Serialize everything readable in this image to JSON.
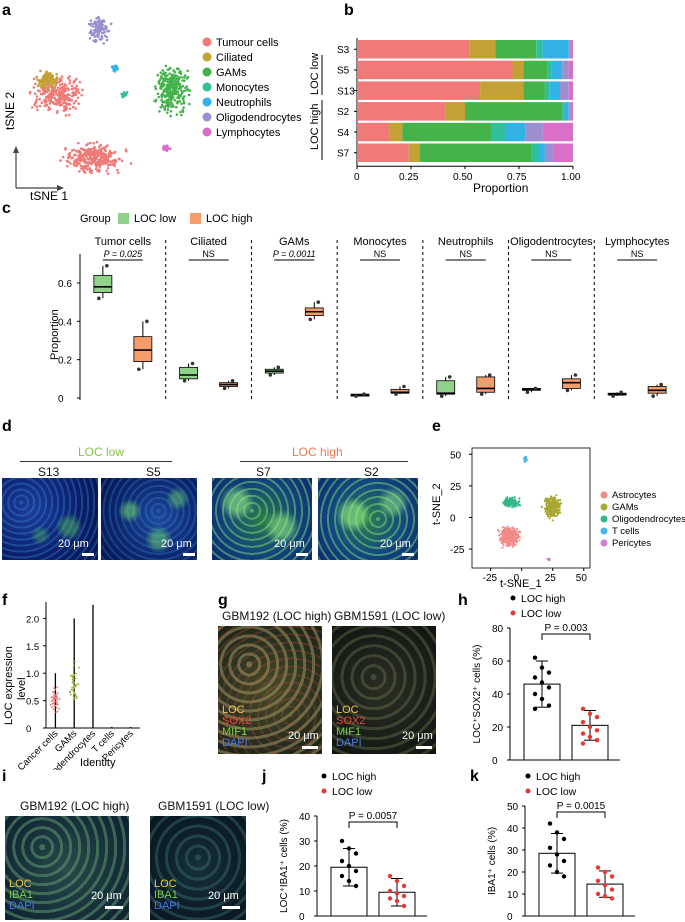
{
  "panel_labels": {
    "a": "a",
    "b": "b",
    "c": "c",
    "d": "d",
    "e": "e",
    "f": "f",
    "g": "g",
    "h": "h",
    "i": "i",
    "j": "j",
    "k": "k"
  },
  "colors": {
    "tumour": "#f07a78",
    "ciliated": "#c4a135",
    "gams": "#45b24a",
    "monocytes": "#2fbf9b",
    "neutrophils": "#31b3e6",
    "oligodendrocytes": "#9b8fd0",
    "lymphocytes": "#d96fc6",
    "loc_low": "#92d18b",
    "loc_high": "#f49c6a",
    "loc_low_label": "#8bc34a",
    "loc_high_label": "#f07a4a",
    "astro": "#f28a8a",
    "gams_e": "#a8a832",
    "oligo_e": "#33b886",
    "tcells_e": "#4ab4e8",
    "peri_e": "#d080d0"
  },
  "panel_a": {
    "xlabel": "tSNE 1",
    "ylabel": "tSNE 2",
    "legend": [
      "Tumour cells",
      "Ciliated",
      "GAMs",
      "Monocytes",
      "Neutrophils",
      "Oligodendrocytes",
      "Lymphocytes"
    ]
  },
  "panel_b": {
    "xlabel": "Proportion",
    "group_low": "LOC low",
    "group_high": "LOC high",
    "xticks": [
      "0",
      "0.25",
      "0.50",
      "0.75",
      "1.00"
    ]
  },
  "panel_c": {
    "group_title": "Group",
    "legend_low": "LOC low",
    "legend_high": "LOC high",
    "ylabel": "Proportion",
    "yticks": [
      "0",
      "0.2",
      "0.4",
      "0.6"
    ],
    "p_labels": [
      "P = 0.025",
      "NS",
      "P = 0.0011",
      "NS",
      "NS",
      "NS",
      "NS"
    ]
  },
  "panel_d": {
    "group_low": "LOC low",
    "group_high": "LOC high",
    "samples": [
      "S13",
      "S5",
      "S7",
      "S2"
    ],
    "scale": "20 μm"
  },
  "panel_e": {
    "xlabel": "t-SNE_1",
    "ylabel": "t-SNE_2",
    "xticks": [
      "-25",
      "0",
      "25",
      "50"
    ],
    "yticks": [
      "-25",
      "0",
      "25",
      "50"
    ],
    "legend": [
      "Astrocytes",
      "GAMs",
      "Oligodendrocytes",
      "T cells",
      "Pericytes"
    ]
  },
  "panel_f": {
    "ylabel_line1": "LOC expression",
    "ylabel_line2": "level",
    "xlabel": "Identity",
    "yticks": [
      "0",
      "0.5",
      "1.0",
      "1.5",
      "2.0"
    ],
    "categories": [
      "Cancer cells",
      "GAMs",
      "Oligodendrocytes",
      "T cells",
      "Pericytes"
    ]
  },
  "panel_g": {
    "title_left": "GBM192 (LOC high)",
    "title_right": "GBM1591 (LOC low)",
    "channels": [
      "LOC",
      "SOX2",
      "MIF1",
      "DAPI"
    ],
    "scale": "20 μm"
  },
  "panel_h": {
    "legend_high": "LOC high",
    "legend_low": "LOC low",
    "p": "P = 0.003",
    "ylabel": "LOC⁺SOX2⁺ cells (%)",
    "yticks": [
      "0",
      "20",
      "40",
      "60",
      "80"
    ]
  },
  "panel_i": {
    "title_left": "GBM192 (LOC high)",
    "title_right": "GBM1591 (LOC low)",
    "channels": [
      "LOC",
      "IBA1",
      "DAPI"
    ],
    "scale": "20 μm"
  },
  "panel_j": {
    "legend_high": "LOC high",
    "legend_low": "LOC low",
    "p": "P = 0.0057",
    "ylabel": "LOC⁺IBA1⁺ cells (%)",
    "yticks": [
      "0",
      "10",
      "20",
      "30",
      "40"
    ]
  },
  "panel_k": {
    "legend_high": "LOC high",
    "legend_low": "LOC low",
    "p": "P = 0.0015",
    "ylabel": "IBA1⁺ cells (%)",
    "yticks": [
      "0",
      "10",
      "20",
      "30",
      "40",
      "50"
    ]
  },
  "chart_data": [
    {
      "type": "bar",
      "id": "b",
      "stacked": true,
      "orientation": "horizontal",
      "categories": [
        "S3",
        "S5",
        "S13",
        "S2",
        "S4",
        "S7"
      ],
      "series": [
        {
          "name": "Tumour cells",
          "values": [
            0.52,
            0.72,
            0.57,
            0.41,
            0.15,
            0.24
          ]
        },
        {
          "name": "Ciliated",
          "values": [
            0.12,
            0.05,
            0.2,
            0.09,
            0.06,
            0.05
          ]
        },
        {
          "name": "GAMs",
          "values": [
            0.19,
            0.11,
            0.1,
            0.45,
            0.41,
            0.52
          ]
        },
        {
          "name": "Monocytes",
          "values": [
            0.03,
            0.02,
            0.02,
            0.01,
            0.07,
            0.03
          ]
        },
        {
          "name": "Neutrophils",
          "values": [
            0.12,
            0.05,
            0.05,
            0.02,
            0.09,
            0.03
          ]
        },
        {
          "name": "Oligodendrocytes",
          "values": [
            0.01,
            0.03,
            0.04,
            0.01,
            0.08,
            0.04
          ]
        },
        {
          "name": "Lymphocytes",
          "values": [
            0.01,
            0.02,
            0.02,
            0.01,
            0.14,
            0.09
          ]
        }
      ],
      "xlim": [
        0,
        1
      ],
      "xlabel": "Proportion"
    },
    {
      "type": "box",
      "id": "c",
      "categories": [
        "Tumor cells",
        "Ciliated",
        "GAMs",
        "Monocytes",
        "Neutrophils",
        "Oligodentrocytes",
        "Lymphocytes"
      ],
      "series": [
        {
          "name": "LOC low",
          "stats": [
            [
              0.52,
              0.55,
              0.58,
              0.64,
              0.69
            ],
            [
              0.09,
              0.1,
              0.12,
              0.16,
              0.18
            ],
            [
              0.12,
              0.13,
              0.14,
              0.15,
              0.16
            ],
            [
              0.01,
              0.01,
              0.015,
              0.02,
              0.02
            ],
            [
              0.01,
              0.02,
              0.025,
              0.09,
              0.11
            ],
            [
              0.03,
              0.04,
              0.045,
              0.05,
              0.05
            ],
            [
              0.01,
              0.015,
              0.02,
              0.025,
              0.03
            ]
          ]
        },
        {
          "name": "LOC high",
          "stats": [
            [
              0.15,
              0.19,
              0.25,
              0.32,
              0.4
            ],
            [
              0.05,
              0.06,
              0.07,
              0.08,
              0.09
            ],
            [
              0.41,
              0.43,
              0.45,
              0.47,
              0.5
            ],
            [
              0.02,
              0.025,
              0.03,
              0.045,
              0.06
            ],
            [
              0.02,
              0.03,
              0.05,
              0.11,
              0.12
            ],
            [
              0.04,
              0.05,
              0.08,
              0.1,
              0.12
            ],
            [
              0.01,
              0.025,
              0.04,
              0.06,
              0.07
            ]
          ]
        }
      ],
      "ylim": [
        0,
        0.72
      ],
      "ylabel": "Proportion"
    },
    {
      "type": "bar",
      "id": "h",
      "categories": [
        "LOC high",
        "LOC low"
      ],
      "values": [
        46,
        21
      ],
      "errors": [
        14,
        9
      ],
      "points": [
        [
          62,
          56,
          53,
          50,
          47,
          44,
          40,
          37,
          33,
          31
        ],
        [
          31,
          28,
          26,
          23,
          20,
          18,
          16,
          14,
          12,
          10
        ]
      ],
      "ylim": [
        0,
        80
      ],
      "ylabel": "LOC⁺SOX2⁺ cells (%)"
    },
    {
      "type": "bar",
      "id": "j",
      "categories": [
        "LOC high",
        "LOC low"
      ],
      "values": [
        19.5,
        9.5
      ],
      "errors": [
        7.5,
        5.5
      ],
      "points": [
        [
          30,
          27,
          25,
          22,
          20,
          18,
          16,
          14,
          12
        ],
        [
          16,
          14,
          12,
          10,
          9,
          8,
          7,
          6,
          4
        ]
      ],
      "ylim": [
        0,
        40
      ],
      "ylabel": "LOC⁺IBA1⁺ cells (%)"
    },
    {
      "type": "bar",
      "id": "k",
      "categories": [
        "LOC high",
        "LOC low"
      ],
      "values": [
        28.5,
        14.5
      ],
      "errors": [
        9,
        6
      ],
      "points": [
        [
          42,
          38,
          35,
          31,
          28,
          25,
          23,
          20,
          18
        ],
        [
          22,
          20,
          18,
          16,
          14,
          12,
          10,
          9,
          8
        ]
      ],
      "ylim": [
        0,
        50
      ],
      "ylabel": "IBA1⁺ cells (%)"
    }
  ]
}
